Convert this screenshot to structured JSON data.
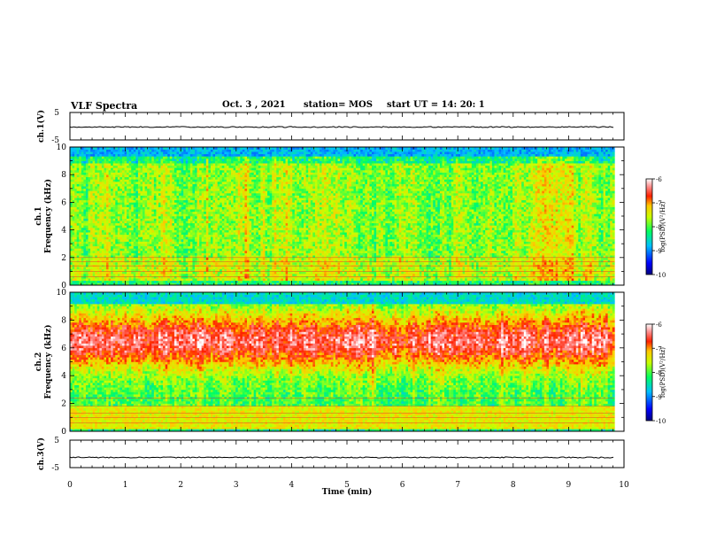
{
  "header": {
    "title": "VLF Spectra",
    "date": "Oct. 3  , 2021",
    "station": "station= MOS",
    "start": "start  UT =   14: 20: 1"
  },
  "chart_data": [
    {
      "id": "ch1-waveform",
      "type": "line",
      "ylabel": "ch.1(V)",
      "ylim": [
        -5,
        5
      ],
      "yticks": [
        "5",
        "-5"
      ],
      "xlim": [
        0,
        10
      ],
      "trace_level": -0.3
    },
    {
      "id": "ch1-spectrogram",
      "type": "heatmap",
      "ylabel_line1": "ch.1",
      "ylabel_line2": "Frequency (kHz)",
      "ylim": [
        0,
        10
      ],
      "yticks": [
        "0",
        "2",
        "4",
        "6",
        "8",
        "10"
      ],
      "xlim": [
        0,
        9.83
      ],
      "colorbar": {
        "label": "log(PSD)(V²/Hz)",
        "range": [
          -10,
          -6
        ],
        "ticks": [
          "-6",
          "-7",
          "-8",
          "-9",
          "-10"
        ]
      }
    },
    {
      "id": "ch2-spectrogram",
      "type": "heatmap",
      "ylabel_line1": "ch.2",
      "ylabel_line2": "Frequency (kHz)",
      "ylim": [
        0,
        10
      ],
      "yticks": [
        "0",
        "2",
        "4",
        "6",
        "8",
        "10"
      ],
      "xlim": [
        0,
        9.83
      ],
      "colorbar": {
        "label": "log(PSD)(V²/Hz)",
        "range": [
          -10,
          -6
        ],
        "ticks": [
          "-6",
          "-7",
          "-8",
          "-9",
          "-10"
        ]
      }
    },
    {
      "id": "ch3-waveform",
      "type": "line",
      "ylabel": "ch.3(V)",
      "ylim": [
        -5,
        5
      ],
      "yticks": [
        "5",
        "-5"
      ],
      "xlim": [
        0,
        10
      ],
      "trace_level": -1.3
    }
  ],
  "xaxis": {
    "label": "Time (min)",
    "range": [
      0,
      10
    ],
    "ticks": [
      "0",
      "1",
      "2",
      "3",
      "4",
      "5",
      "6",
      "7",
      "8",
      "9",
      "10"
    ]
  }
}
